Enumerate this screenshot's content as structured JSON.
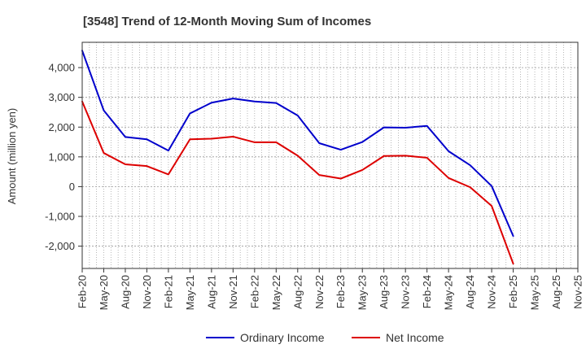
{
  "chart_data": {
    "type": "line",
    "title": "[3548]  Trend of 12-Month Moving Sum of Incomes",
    "xlabel": "",
    "ylabel": "Amount (million yen)",
    "ylim": [
      -2750,
      4850
    ],
    "yticks": [
      4000,
      3000,
      2000,
      1000,
      0,
      -1000,
      -2000
    ],
    "ytick_labels": [
      "4,000",
      "3,000",
      "2,000",
      "1,000",
      "0",
      "-1,000",
      "-2,000"
    ],
    "xtick_labels": [
      "Feb-20",
      "May-20",
      "Aug-20",
      "Nov-20",
      "Feb-21",
      "May-21",
      "Aug-21",
      "Nov-21",
      "Feb-22",
      "May-22",
      "Aug-22",
      "Nov-22",
      "Feb-23",
      "May-23",
      "Aug-23",
      "Nov-23",
      "Feb-24",
      "May-24",
      "Aug-24",
      "Nov-24",
      "Feb-25",
      "May-25",
      "Aug-25",
      "Nov-25"
    ],
    "grid": true,
    "legend_position": "bottom",
    "colors": {
      "ordinary": "#0000cc",
      "net": "#dd0000",
      "grid": "#999999",
      "axis": "#333333"
    },
    "series": [
      {
        "name": "Ordinary Income",
        "color": "#0000cc",
        "values": [
          4570,
          2560,
          1670,
          1590,
          1210,
          2460,
          2820,
          2960,
          2860,
          2810,
          2390,
          1460,
          1240,
          1500,
          1990,
          1980,
          2040,
          1190,
          720,
          20,
          -1660
        ]
      },
      {
        "name": "Net Income",
        "color": "#dd0000",
        "values": [
          2860,
          1130,
          750,
          690,
          410,
          1590,
          1610,
          1680,
          1490,
          1490,
          1040,
          390,
          270,
          560,
          1030,
          1040,
          970,
          290,
          -20,
          -650,
          -2590
        ]
      }
    ]
  }
}
